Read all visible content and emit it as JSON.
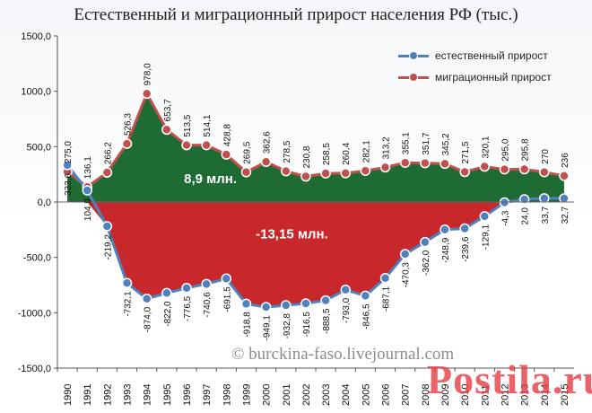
{
  "chart_data": {
    "type": "area",
    "title": "Естественный и миграционный прирост населения РФ (тыс.)",
    "xlabel": "",
    "ylabel": "",
    "ylim": [
      -1500,
      1500
    ],
    "y_ticks": [
      -1500,
      -1000,
      -500,
      0,
      500,
      1000,
      1500
    ],
    "y_tick_labels": [
      "-1500,0",
      "-1000,0",
      "-500,0",
      "0,0",
      "500,0",
      "1000,0",
      "1500,0"
    ],
    "categories": [
      "1990",
      "1991",
      "1992",
      "1993",
      "1994",
      "1995",
      "1996",
      "1997",
      "1998",
      "1999",
      "2000",
      "2001",
      "2002",
      "2003",
      "2004",
      "2005",
      "2006",
      "2007",
      "2008",
      "2009",
      "2010",
      "2011",
      "2012",
      "2013",
      "2014",
      "2015"
    ],
    "series": [
      {
        "name": "естественный прирост",
        "color": "#4f81bd",
        "values": [
          333.6,
          104.9,
          -219.2,
          -732.1,
          -874.0,
          -822.0,
          -776.5,
          -740.6,
          -691.5,
          -918.8,
          -949.1,
          -932.8,
          -916.5,
          -888.5,
          -793.0,
          -846.5,
          -687.1,
          -470.3,
          -362.0,
          -248.9,
          -239.6,
          -129.1,
          -4.3,
          24.0,
          33.7,
          32.7
        ],
        "labels": [
          "333,6",
          "104,9",
          "-219,2",
          "-732,1",
          "-874,0",
          "-822,0",
          "-776,5",
          "-740,6",
          "-691,5",
          "-918,8",
          "-949,1",
          "-932,8",
          "-916,5",
          "-888,5",
          "-793,0",
          "-846,5",
          "-687,1",
          "-470,3",
          "-362,0",
          "-248,9",
          "-239,6",
          "-129,1",
          "-4,3",
          "24,0",
          "33,7",
          "32,7"
        ]
      },
      {
        "name": "миграционный прирост",
        "color": "#c0504d",
        "values": [
          275.0,
          136.1,
          266.2,
          526.3,
          978.0,
          653.7,
          513.5,
          514.1,
          428.8,
          269.5,
          362.6,
          278.5,
          230.8,
          258.5,
          260.4,
          282.1,
          313.2,
          355.1,
          351.7,
          345.2,
          271.5,
          320.1,
          295.0,
          295.8,
          270,
          236
        ],
        "labels": [
          "275,0",
          "136,1",
          "266,2",
          "526,3",
          "978,0",
          "653,7",
          "513,5",
          "514,1",
          "428,8",
          "269,5",
          "362,6",
          "278,5",
          "230,8",
          "258,5",
          "260,4",
          "282,1",
          "313,2",
          "355,1",
          "351,7",
          "345,2",
          "271,5",
          "320,1",
          "295,0",
          "295,8",
          "270",
          "236"
        ]
      }
    ],
    "fill_colors": {
      "positive": "#1f6b34",
      "negative": "#c8282c"
    },
    "annotations": [
      "8,9 млн.",
      "-13,15 млн."
    ],
    "legend_position": "top-right",
    "grid": false
  },
  "watermark": "© burckina-faso.livejournal.com",
  "brand": "Postila.ru"
}
